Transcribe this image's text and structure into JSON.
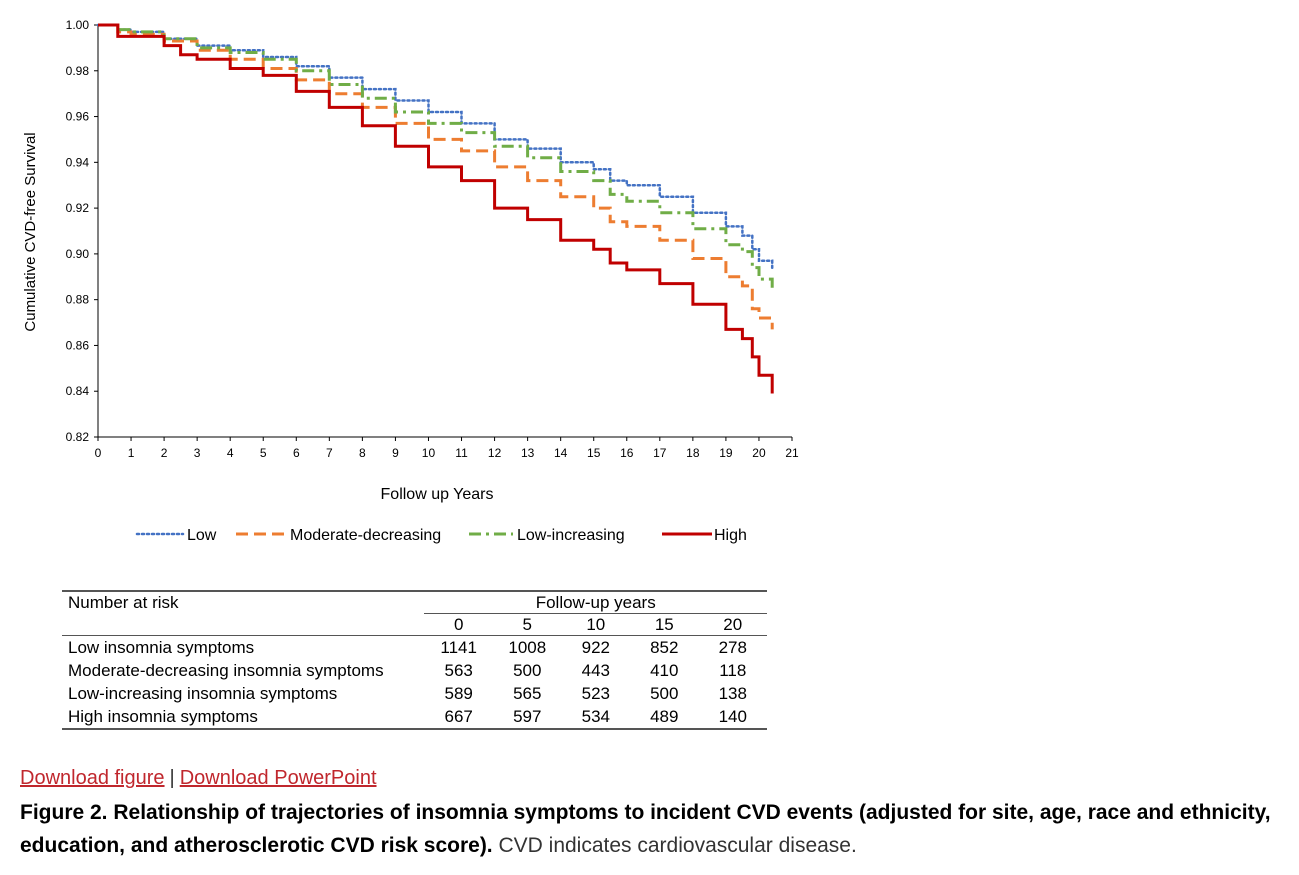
{
  "chart_data": {
    "type": "line",
    "xlabel": "Follow up Years",
    "ylabel": "Cumulative CVD-free Survival",
    "xlim": [
      0,
      21
    ],
    "ylim": [
      0.82,
      1.0
    ],
    "xticks": [
      0,
      1,
      2,
      3,
      4,
      5,
      6,
      7,
      8,
      9,
      10,
      11,
      12,
      13,
      14,
      15,
      16,
      17,
      18,
      19,
      20,
      21
    ],
    "yticks": [
      0.82,
      0.84,
      0.86,
      0.88,
      0.9,
      0.92,
      0.94,
      0.96,
      0.98,
      1.0
    ],
    "ytick_labels": [
      "0.82",
      "0.84",
      "0.86",
      "0.88",
      "0.90",
      "0.92",
      "0.94",
      "0.96",
      "0.98",
      "1.00"
    ],
    "series": [
      {
        "name": "Low",
        "color": "#4472c4",
        "style": "dotted",
        "x": [
          0,
          0.6,
          1,
          2,
          3,
          4,
          5,
          6,
          7,
          8,
          9,
          10,
          11,
          12,
          13,
          14,
          15,
          15.5,
          16,
          17,
          18,
          19,
          19.5,
          19.8,
          20,
          20.4
        ],
        "y": [
          1.0,
          0.998,
          0.997,
          0.994,
          0.991,
          0.989,
          0.986,
          0.982,
          0.977,
          0.972,
          0.967,
          0.962,
          0.957,
          0.95,
          0.946,
          0.94,
          0.937,
          0.932,
          0.93,
          0.925,
          0.918,
          0.912,
          0.908,
          0.902,
          0.897,
          0.893
        ]
      },
      {
        "name": "Moderate-decreasing",
        "color": "#ed7d31",
        "style": "dashed",
        "x": [
          0,
          0.6,
          1,
          2,
          3,
          4,
          5,
          6,
          7,
          8,
          9,
          10,
          11,
          12,
          13,
          14,
          15,
          15.5,
          16,
          17,
          18,
          19,
          19.5,
          19.8,
          20,
          20.4
        ],
        "y": [
          1.0,
          0.997,
          0.996,
          0.993,
          0.989,
          0.985,
          0.981,
          0.976,
          0.97,
          0.964,
          0.957,
          0.95,
          0.945,
          0.938,
          0.932,
          0.925,
          0.92,
          0.914,
          0.912,
          0.906,
          0.898,
          0.89,
          0.886,
          0.876,
          0.872,
          0.867
        ]
      },
      {
        "name": "Low-increasing",
        "color": "#70ad47",
        "style": "dashdot",
        "x": [
          0,
          0.6,
          1,
          2,
          3,
          4,
          5,
          6,
          7,
          8,
          9,
          10,
          11,
          12,
          13,
          14,
          15,
          15.5,
          16,
          17,
          18,
          19,
          19.5,
          19.8,
          20,
          20.4
        ],
        "y": [
          1.0,
          0.998,
          0.997,
          0.994,
          0.99,
          0.988,
          0.985,
          0.98,
          0.974,
          0.968,
          0.962,
          0.957,
          0.953,
          0.947,
          0.942,
          0.936,
          0.932,
          0.926,
          0.923,
          0.918,
          0.911,
          0.904,
          0.901,
          0.894,
          0.889,
          0.885
        ]
      },
      {
        "name": "High",
        "color": "#c00000",
        "style": "solid",
        "x": [
          0,
          0.6,
          1,
          2,
          2.5,
          3,
          4,
          5,
          6,
          7,
          8,
          9,
          10,
          11,
          12,
          13,
          14,
          15,
          15.5,
          16,
          17,
          18,
          19,
          19.5,
          19.8,
          20,
          20.4
        ],
        "y": [
          1.0,
          0.995,
          0.995,
          0.991,
          0.987,
          0.985,
          0.981,
          0.978,
          0.971,
          0.964,
          0.956,
          0.947,
          0.938,
          0.932,
          0.92,
          0.915,
          0.906,
          0.902,
          0.896,
          0.893,
          0.887,
          0.878,
          0.867,
          0.863,
          0.855,
          0.847,
          0.839
        ]
      }
    ]
  },
  "risk_table": {
    "title": "Number at risk",
    "header": "Follow-up years",
    "years": [
      "0",
      "5",
      "10",
      "15",
      "20"
    ],
    "rows": [
      {
        "label": "Low insomnia symptoms",
        "values": [
          "1141",
          "1008",
          "922",
          "852",
          "278"
        ]
      },
      {
        "label": "Moderate-decreasing insomnia symptoms",
        "values": [
          "563",
          "500",
          "443",
          "410",
          "118"
        ]
      },
      {
        "label": "Low-increasing insomnia symptoms",
        "values": [
          "589",
          "565",
          "523",
          "500",
          "138"
        ]
      },
      {
        "label": "High insomnia symptoms",
        "values": [
          "667",
          "597",
          "534",
          "489",
          "140"
        ]
      }
    ]
  },
  "links": {
    "download_figure": "Download figure",
    "separator": "|",
    "download_ppt": "Download PowerPoint"
  },
  "caption": {
    "bold": "Figure 2. Relationship of trajectories of insomnia symptoms to incident CVD events (adjusted for site, age, race and ethnicity, education, and atherosclerotic CVD risk score).",
    "plain": " CVD indicates cardiovascular disease."
  }
}
